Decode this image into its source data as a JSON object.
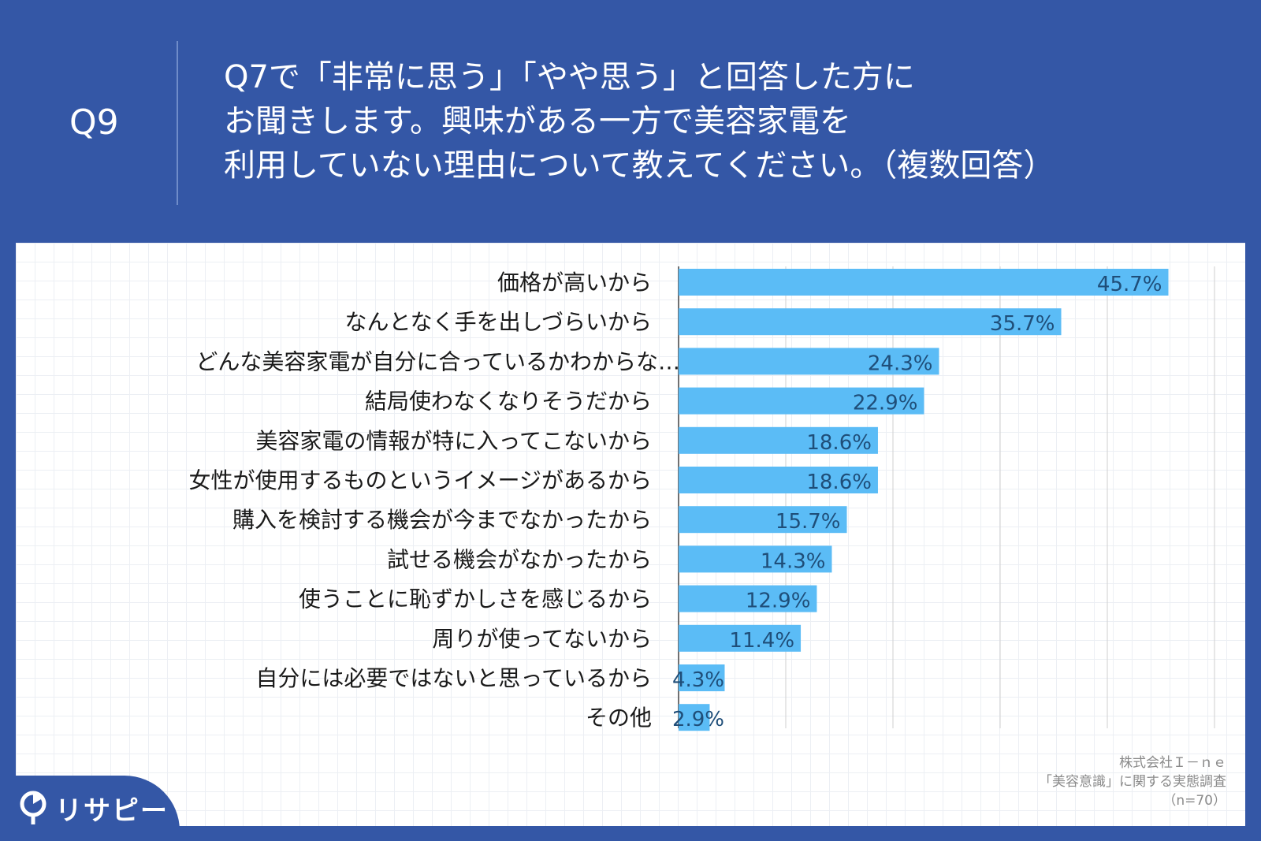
{
  "header": {
    "question_number": "Q9",
    "question_lines": [
      "Q7で「非常に思う」「やや思う」と回答した方に",
      "お聞きします。興味がある一方で美容家電を",
      "利用していない理由について教えてください。（複数回答）"
    ]
  },
  "chart_data": {
    "type": "bar",
    "orientation": "horizontal",
    "categories": [
      "価格が高いから",
      "なんとなく手を出しづらいから",
      "どんな美容家電が自分に合っているかわからな…",
      "結局使わなくなりそうだから",
      "美容家電の情報が特に入ってこないから",
      "女性が使用するものというイメージがあるから",
      "購入を検討する機会が今までなかったから",
      "試せる機会がなかったから",
      "使うことに恥ずかしさを感じるから",
      "周りが使ってないから",
      "自分には必要ではないと思っているから",
      "その他"
    ],
    "values": [
      45.7,
      35.7,
      24.3,
      22.9,
      18.6,
      18.6,
      15.7,
      14.3,
      12.9,
      11.4,
      4.3,
      2.9
    ],
    "value_labels": [
      "45.7%",
      "35.7%",
      "24.3%",
      "22.9%",
      "18.6%",
      "18.6%",
      "15.7%",
      "14.3%",
      "12.9%",
      "11.4%",
      "4.3%",
      "2.9%"
    ],
    "xlim": [
      0,
      50
    ],
    "grid": true,
    "bar_color": "#5bbcf6",
    "value_label_color": "#1f4e79"
  },
  "source": {
    "company": "株式会社Ｉ－ｎｅ",
    "survey": "「美容意識」に関する実態調査",
    "sample": "（n=70）"
  },
  "logo": {
    "text": "リサピー",
    "icon": "pin-icon"
  },
  "colors": {
    "background": "#3457a6",
    "bar": "#5bbcf6",
    "text_dark": "#1a1a1a",
    "value_text": "#1f4e79"
  }
}
